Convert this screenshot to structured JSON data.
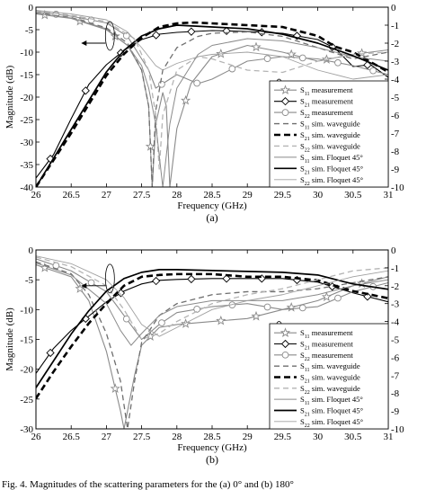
{
  "caption": "Fig. 4.   Magnitudes of the scattering parameters for the (a) 0° and (b) 180°",
  "colors": {
    "ink": "#000000",
    "gray_solid": "#8a8a8a",
    "gray_dash": "#6e6e6e",
    "light_dash": "#b4b4b4",
    "frame": "#000000"
  },
  "chart_data": [
    {
      "panel": "(a)",
      "type": "line",
      "xlabel": "Frequency (GHz)",
      "ylabel": "Magnitude (dB)",
      "xlim": [
        26,
        31
      ],
      "ylim": [
        -40,
        0
      ],
      "y2lim": [
        -10,
        0
      ],
      "xticks": [
        "26",
        "26.5",
        "27",
        "27.5",
        "28",
        "28.5",
        "29",
        "29.5",
        "30",
        "30.5",
        "31"
      ],
      "yticks": [
        "0",
        "-5",
        "-10",
        "-15",
        "-20",
        "-25",
        "-30",
        "-35",
        "-40"
      ],
      "y2ticks": [
        "0",
        "-1",
        "-2",
        "-3",
        "-4",
        "-5",
        "-6",
        "-7",
        "-8",
        "-9",
        "-10"
      ],
      "legend_position": "bottom-right",
      "grid": false,
      "series": [
        {
          "name": "S11 measurement",
          "axis": "left",
          "style": "meas",
          "marker": "star",
          "color": "#8a8a8a",
          "x": [
            26.0,
            26.5,
            27.0,
            27.3,
            27.5,
            27.6,
            27.65,
            27.7,
            27.8,
            27.85,
            27.9,
            28.0,
            28.2,
            28.5,
            29.0,
            29.5,
            30.0,
            30.5,
            31.0
          ],
          "y": [
            -1.5,
            -2.5,
            -5.0,
            -8.5,
            -14.0,
            -22.0,
            -40.0,
            -26.0,
            -19.0,
            -22.0,
            -40.0,
            -27.0,
            -17.0,
            -11.0,
            -8.5,
            -10.0,
            -12.0,
            -10.5,
            -9.5
          ]
        },
        {
          "name": "S21 measurement",
          "axis": "right",
          "style": "meas",
          "marker": "diamond",
          "color": "#000000",
          "x": [
            26.0,
            26.25,
            26.5,
            26.75,
            27.0,
            27.25,
            27.5,
            27.75,
            28.0,
            28.5,
            29.0,
            29.5,
            30.0,
            30.25,
            30.5,
            30.75,
            31.0
          ],
          "y": [
            -9.5,
            -8.2,
            -6.2,
            -4.3,
            -3.2,
            -2.4,
            -1.8,
            -1.5,
            -1.4,
            -1.3,
            -1.35,
            -1.45,
            -1.8,
            -2.3,
            -3.3,
            -3.2,
            -3.9
          ]
        },
        {
          "name": "S22 measurement",
          "axis": "left",
          "style": "meas",
          "marker": "circle",
          "color": "#8a8a8a",
          "x": [
            26.0,
            26.5,
            27.0,
            27.3,
            27.6,
            27.7,
            27.8,
            28.0,
            28.3,
            28.5,
            29.0,
            29.5,
            30.0,
            30.5,
            31.0
          ],
          "y": [
            -1.0,
            -2.0,
            -3.5,
            -6.5,
            -14.0,
            -18.0,
            -17.0,
            -15.0,
            -17.0,
            -16.0,
            -12.0,
            -11.0,
            -11.5,
            -13.0,
            -15.0
          ]
        },
        {
          "name": "S11 sim. waveguide",
          "axis": "left",
          "style": "dash",
          "color": "#6e6e6e",
          "x": [
            26.0,
            26.5,
            27.0,
            27.3,
            27.5,
            27.6,
            27.65,
            27.7,
            27.8,
            28.0,
            28.3,
            28.5,
            29.0,
            29.5,
            30.0,
            30.5,
            31.0
          ],
          "y": [
            -1.3,
            -2.3,
            -4.6,
            -8.0,
            -14.0,
            -22.0,
            -40.0,
            -23.0,
            -14.0,
            -9.0,
            -6.5,
            -5.8,
            -5.5,
            -6.5,
            -9.0,
            -11.5,
            -10.0
          ]
        },
        {
          "name": "S21 sim. waveguide",
          "axis": "right",
          "style": "thickdash",
          "color": "#000000",
          "x": [
            26.0,
            26.5,
            27.0,
            27.25,
            27.5,
            27.75,
            28.0,
            28.25,
            28.5,
            29.0,
            29.5,
            30.0,
            30.25,
            30.5,
            31.0
          ],
          "y": [
            -10.0,
            -7.0,
            -3.8,
            -2.6,
            -1.7,
            -1.1,
            -0.9,
            -0.85,
            -0.9,
            -1.0,
            -1.1,
            -1.6,
            -2.2,
            -2.5,
            -3.6
          ]
        },
        {
          "name": "S22 sim. waveguide",
          "axis": "left",
          "style": "lightdash",
          "color": "#b4b4b4",
          "x": [
            26.0,
            26.5,
            27.0,
            27.4,
            27.6,
            27.7,
            27.75,
            27.8,
            28.0,
            28.3,
            28.5,
            29.0,
            29.5,
            30.0,
            30.5,
            31.0
          ],
          "y": [
            -0.8,
            -1.8,
            -3.2,
            -7.0,
            -14.0,
            -24.0,
            -36.0,
            -24.0,
            -14.0,
            -11.0,
            -11.5,
            -14.0,
            -14.5,
            -12.0,
            -10.5,
            -10.0
          ]
        },
        {
          "name": "S11 sim. Floquet 45°",
          "axis": "left",
          "style": "thin",
          "color": "#8a8a8a",
          "x": [
            26.0,
            26.5,
            27.0,
            27.3,
            27.5,
            27.6,
            27.7,
            27.8,
            27.9,
            28.0,
            28.3,
            28.5,
            29.0,
            29.5,
            30.0,
            30.5,
            31.0
          ],
          "y": [
            -1.4,
            -2.4,
            -4.8,
            -8.5,
            -13.0,
            -18.0,
            -26.0,
            -40.0,
            -26.0,
            -18.0,
            -10.5,
            -8.5,
            -7.0,
            -7.5,
            -9.0,
            -11.0,
            -12.0
          ]
        },
        {
          "name": "S21 sim. Floquet 45°",
          "axis": "right",
          "style": "solid",
          "color": "#000000",
          "x": [
            26.0,
            26.5,
            27.0,
            27.25,
            27.5,
            27.75,
            28.0,
            28.5,
            29.0,
            29.5,
            30.0,
            30.5,
            31.0
          ],
          "y": [
            -10.0,
            -6.8,
            -3.6,
            -2.4,
            -1.6,
            -1.2,
            -1.0,
            -1.1,
            -1.2,
            -1.5,
            -2.0,
            -2.7,
            -3.5
          ]
        },
        {
          "name": "S22 sim. Floquet 45°",
          "axis": "left",
          "style": "thinlight",
          "color": "#a0a0a0",
          "x": [
            26.0,
            26.5,
            27.0,
            27.3,
            27.5,
            27.7,
            27.8,
            28.0,
            28.3,
            28.5,
            29.0,
            29.5,
            30.0,
            30.5,
            31.0
          ],
          "y": [
            -0.7,
            -1.5,
            -2.8,
            -5.5,
            -9.0,
            -13.0,
            -14.0,
            -12.5,
            -11.0,
            -10.5,
            -10.0,
            -11.0,
            -14.0,
            -16.0,
            -15.0
          ]
        }
      ]
    },
    {
      "panel": "(b)",
      "type": "line",
      "xlabel": "Frequency (GHz)",
      "ylabel": "Magnitude (dB)",
      "xlim": [
        26,
        31
      ],
      "ylim": [
        -30,
        0
      ],
      "y2lim": [
        -10,
        0
      ],
      "xticks": [
        "26",
        "26.5",
        "27",
        "27.5",
        "28",
        "28.5",
        "29",
        "29.5",
        "30",
        "30.5",
        "31"
      ],
      "yticks": [
        "0",
        "-5",
        "-10",
        "-15",
        "-20",
        "-25",
        "-30"
      ],
      "y2ticks": [
        "0",
        "-1",
        "-2",
        "-3",
        "-4",
        "-5",
        "-6",
        "-7",
        "-8",
        "-9",
        "-10"
      ],
      "legend_position": "bottom-right",
      "grid": false,
      "series": [
        {
          "name": "S11 measurement",
          "axis": "left",
          "style": "meas",
          "marker": "star",
          "color": "#8a8a8a",
          "x": [
            26.0,
            26.5,
            26.75,
            27.0,
            27.1,
            27.2,
            27.25,
            27.3,
            27.4,
            27.5,
            27.75,
            28.0,
            28.5,
            29.0,
            29.5,
            30.0,
            30.5,
            31.0
          ],
          "y": [
            -2.5,
            -4.5,
            -8.5,
            -17.0,
            -22.0,
            -27.0,
            -30.0,
            -27.0,
            -21.0,
            -16.0,
            -13.0,
            -12.5,
            -12.0,
            -11.5,
            -10.0,
            -8.5,
            -6.0,
            -4.5
          ]
        },
        {
          "name": "S21 measurement",
          "axis": "right",
          "style": "meas",
          "marker": "diamond",
          "color": "#000000",
          "x": [
            26.0,
            26.25,
            26.5,
            26.75,
            27.0,
            27.25,
            27.5,
            27.75,
            28.0,
            28.5,
            29.0,
            29.5,
            30.0,
            30.5,
            31.0
          ],
          "y": [
            -6.9,
            -5.5,
            -4.5,
            -3.7,
            -2.9,
            -2.3,
            -1.9,
            -1.7,
            -1.65,
            -1.6,
            -1.6,
            -1.6,
            -1.8,
            -2.4,
            -2.9
          ]
        },
        {
          "name": "S22 measurement",
          "axis": "left",
          "style": "meas",
          "marker": "circle",
          "color": "#8a8a8a",
          "x": [
            26.0,
            26.5,
            27.0,
            27.25,
            27.5,
            27.75,
            28.0,
            28.5,
            29.0,
            29.5,
            30.0,
            30.5,
            31.0
          ],
          "y": [
            -1.5,
            -3.5,
            -7.0,
            -11.0,
            -15.0,
            -12.5,
            -10.5,
            -9.5,
            -9.0,
            -10.0,
            -9.5,
            -7.0,
            -5.5
          ]
        },
        {
          "name": "S11 sim. waveguide",
          "axis": "left",
          "style": "dash",
          "color": "#6e6e6e",
          "x": [
            26.0,
            26.5,
            26.75,
            27.0,
            27.2,
            27.3,
            27.4,
            27.5,
            27.75,
            28.0,
            28.5,
            29.0,
            29.5,
            30.0,
            30.5,
            31.0
          ],
          "y": [
            -2.0,
            -4.0,
            -7.5,
            -14.0,
            -22.0,
            -30.0,
            -22.0,
            -15.5,
            -11.0,
            -9.0,
            -7.5,
            -7.0,
            -7.0,
            -6.5,
            -5.5,
            -4.5
          ]
        },
        {
          "name": "S21 sim. waveguide",
          "axis": "right",
          "style": "thickdash",
          "color": "#000000",
          "x": [
            26.0,
            26.25,
            26.5,
            26.75,
            27.0,
            27.25,
            27.5,
            27.75,
            28.0,
            28.5,
            29.0,
            29.5,
            30.0,
            30.5,
            31.0
          ],
          "y": [
            -8.3,
            -6.8,
            -5.4,
            -4.1,
            -3.0,
            -2.0,
            -1.5,
            -1.4,
            -1.35,
            -1.35,
            -1.5,
            -1.5,
            -1.7,
            -2.3,
            -2.7
          ]
        },
        {
          "name": "S22 sim. waveguide",
          "axis": "left",
          "style": "lightdash",
          "color": "#b4b4b4",
          "x": [
            26.0,
            26.5,
            27.0,
            27.25,
            27.5,
            27.75,
            28.0,
            28.5,
            29.0,
            29.5,
            30.0,
            30.5,
            31.0
          ],
          "y": [
            -1.2,
            -2.8,
            -6.0,
            -10.0,
            -15.0,
            -14.0,
            -12.0,
            -9.0,
            -7.5,
            -6.5,
            -5.0,
            -3.5,
            -3.0
          ]
        },
        {
          "name": "S11 sim. Floquet 45°",
          "axis": "left",
          "style": "thin",
          "color": "#8a8a8a",
          "x": [
            26.0,
            26.5,
            27.0,
            27.2,
            27.35,
            27.5,
            27.75,
            28.0,
            28.5,
            29.0,
            29.5,
            30.0,
            30.5,
            31.0
          ],
          "y": [
            -2.2,
            -4.2,
            -9.0,
            -13.5,
            -16.0,
            -14.0,
            -11.0,
            -9.5,
            -8.5,
            -8.5,
            -8.5,
            -7.5,
            -6.0,
            -5.0
          ]
        },
        {
          "name": "S21 sim. Floquet 45°",
          "axis": "right",
          "style": "solid",
          "color": "#000000",
          "x": [
            26.0,
            26.25,
            26.5,
            26.75,
            27.0,
            27.25,
            27.5,
            27.75,
            28.0,
            28.5,
            29.0,
            29.5,
            30.0,
            30.5,
            31.0
          ],
          "y": [
            -7.7,
            -6.2,
            -4.7,
            -3.4,
            -2.3,
            -1.6,
            -1.25,
            -1.1,
            -1.1,
            -1.15,
            -1.2,
            -1.25,
            -1.4,
            -1.9,
            -2.2
          ]
        },
        {
          "name": "S22 sim. Floquet 45°",
          "axis": "left",
          "style": "thinlight",
          "color": "#a0a0a0",
          "x": [
            26.0,
            26.5,
            27.0,
            27.25,
            27.5,
            27.75,
            28.0,
            28.5,
            29.0,
            29.5,
            30.0,
            30.5,
            31.0
          ],
          "y": [
            -1.0,
            -2.3,
            -5.0,
            -8.0,
            -12.5,
            -14.5,
            -13.0,
            -10.0,
            -8.5,
            -7.5,
            -6.0,
            -4.5,
            -3.5
          ]
        }
      ]
    }
  ]
}
